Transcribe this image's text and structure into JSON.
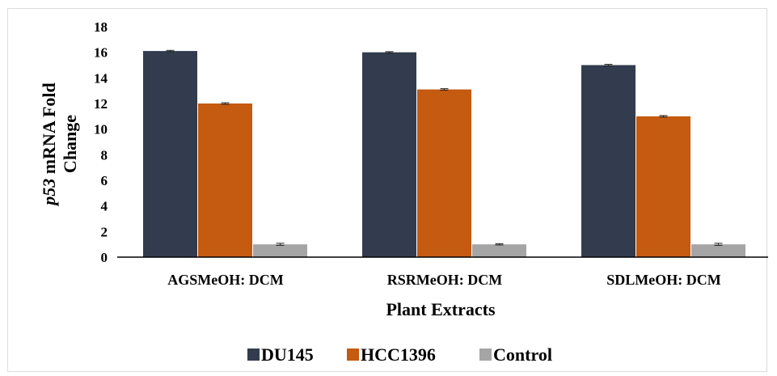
{
  "chart_data": {
    "type": "bar",
    "categories": [
      "AGSMeOH: DCM",
      "RSRMeOH: DCM",
      "SDLMeOH: DCM"
    ],
    "series": [
      {
        "name": "DU145",
        "values": [
          16.1,
          16.0,
          15.0
        ],
        "errors": [
          0.05,
          0.05,
          0.06
        ],
        "color": "#323c4e"
      },
      {
        "name": "HCC1396",
        "values": [
          12.0,
          13.1,
          11.0
        ],
        "errors": [
          0.06,
          0.06,
          0.06
        ],
        "color": "#c55a11"
      },
      {
        "name": "Control",
        "values": [
          1.0,
          1.0,
          1.0
        ],
        "errors": [
          0.08,
          0.05,
          0.08
        ],
        "color": "#a5a5a5"
      }
    ],
    "xlabel": "Plant Extracts",
    "ylabel_italic": "p53",
    "ylabel_line1_rest": " mRNA Fold",
    "ylabel_line2": "Change",
    "ylim": [
      0,
      18
    ],
    "yticks": [
      0,
      2,
      4,
      6,
      8,
      10,
      12,
      14,
      16,
      18
    ],
    "grid": false,
    "legend_position": "bottom"
  }
}
